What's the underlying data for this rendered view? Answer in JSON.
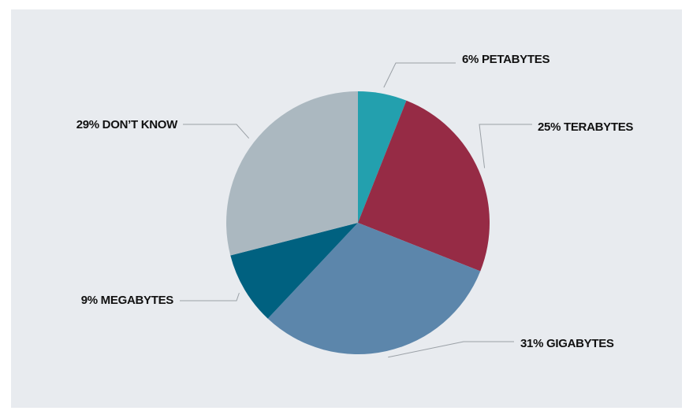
{
  "chart_data": {
    "type": "pie",
    "title": "",
    "slices": [
      {
        "label": "6% PETABYTES",
        "name": "PETABYTES",
        "value": 6,
        "color": "#23a0ae"
      },
      {
        "label": "25% TERABYTES",
        "name": "TERABYTES",
        "value": 25,
        "color": "#962b45"
      },
      {
        "label": "31% GIGABYTES",
        "name": "GIGABYTES",
        "value": 31,
        "color": "#5c86ab"
      },
      {
        "label": "9% MEGABYTES",
        "name": "MEGABYTES",
        "value": 9,
        "color": "#006180"
      },
      {
        "label": "29% DON’T KNOW",
        "name": "DON’T KNOW",
        "value": 29,
        "color": "#abb8c0"
      }
    ],
    "start_angle": "12 o'clock",
    "direction": "clockwise",
    "legend": "none"
  }
}
